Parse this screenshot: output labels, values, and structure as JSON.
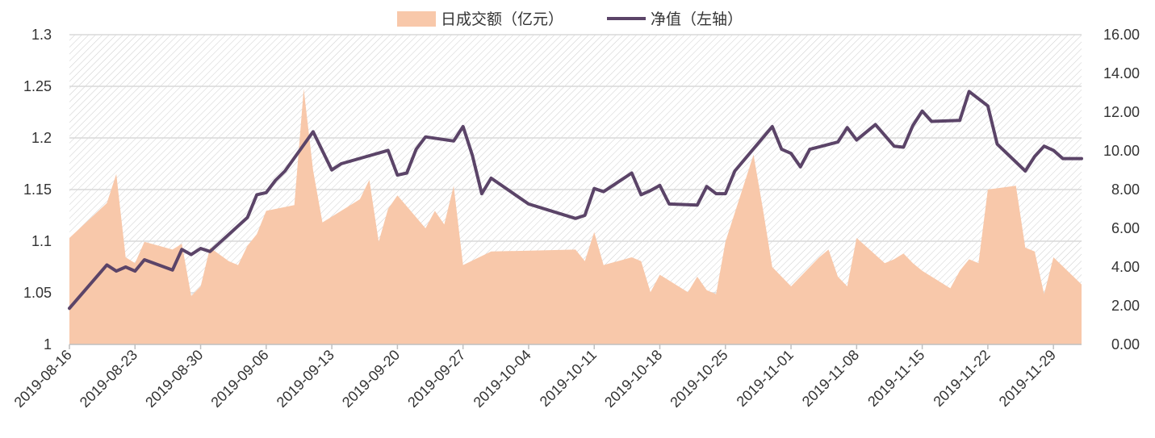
{
  "chart_data": {
    "type": "area+line",
    "title": "",
    "xlabel": "",
    "ylabel": "",
    "legend": {
      "placement": "top-center",
      "entries": [
        {
          "name": "日成交额（亿元）",
          "kind": "area"
        },
        {
          "name": "净值（左轴）",
          "kind": "line"
        }
      ]
    },
    "colors": {
      "area": "#f8c8aa",
      "line": "#5b4468",
      "grid": "#d9d9d9",
      "hatch": "#c8c8c8"
    },
    "x_ticks": [
      "2019-08-16",
      "2019-08-23",
      "2019-08-30",
      "2019-09-06",
      "2019-09-13",
      "2019-09-20",
      "2019-09-27",
      "2019-10-04",
      "2019-10-11",
      "2019-10-18",
      "2019-10-25",
      "2019-11-01",
      "2019-11-08",
      "2019-11-15",
      "2019-11-22",
      "2019-11-29"
    ],
    "x_range": [
      "2019-08-16",
      "2019-12-02"
    ],
    "y_left": {
      "min": 1.0,
      "max": 1.3,
      "ticks": [
        "1",
        "1.05",
        "1.1",
        "1.15",
        "1.2",
        "1.25",
        "1.3"
      ],
      "tick_values": [
        1,
        1.05,
        1.1,
        1.15,
        1.2,
        1.25,
        1.3
      ]
    },
    "y_right": {
      "min": 0,
      "max": 16,
      "ticks": [
        "0.00",
        "2.00",
        "4.00",
        "6.00",
        "8.00",
        "10.00",
        "12.00",
        "14.00",
        "16.00"
      ],
      "tick_values": [
        0,
        2,
        4,
        6,
        8,
        10,
        12,
        14,
        16
      ]
    },
    "grid": true,
    "series": [
      {
        "name": "日成交额（亿元）",
        "type": "area",
        "axis": "right",
        "points": [
          [
            "2019-08-16",
            5.5
          ],
          [
            "2019-08-20",
            7.3
          ],
          [
            "2019-08-21",
            8.8
          ],
          [
            "2019-08-22",
            4.5
          ],
          [
            "2019-08-23",
            4.2
          ],
          [
            "2019-08-24",
            5.3
          ],
          [
            "2019-08-27",
            4.9
          ],
          [
            "2019-08-28",
            5.2
          ],
          [
            "2019-08-29",
            2.5
          ],
          [
            "2019-08-30",
            3.0
          ],
          [
            "2019-08-31",
            5.0
          ],
          [
            "2019-09-02",
            4.3
          ],
          [
            "2019-09-03",
            4.1
          ],
          [
            "2019-09-04",
            5.1
          ],
          [
            "2019-09-05",
            5.7
          ],
          [
            "2019-09-06",
            6.9
          ],
          [
            "2019-09-09",
            7.2
          ],
          [
            "2019-09-10",
            13.2
          ],
          [
            "2019-09-11",
            9.0
          ],
          [
            "2019-09-12",
            6.3
          ],
          [
            "2019-09-16",
            7.5
          ],
          [
            "2019-09-17",
            8.5
          ],
          [
            "2019-09-18",
            5.3
          ],
          [
            "2019-09-19",
            7.0
          ],
          [
            "2019-09-20",
            7.7
          ],
          [
            "2019-09-23",
            6.0
          ],
          [
            "2019-09-24",
            6.9
          ],
          [
            "2019-09-25",
            6.2
          ],
          [
            "2019-09-26",
            8.2
          ],
          [
            "2019-09-27",
            4.1
          ],
          [
            "2019-09-30",
            4.8
          ],
          [
            "2019-10-09",
            4.9
          ],
          [
            "2019-10-10",
            4.3
          ],
          [
            "2019-10-11",
            5.8
          ],
          [
            "2019-10-12",
            4.1
          ],
          [
            "2019-10-15",
            4.5
          ],
          [
            "2019-10-16",
            4.3
          ],
          [
            "2019-10-17",
            2.7
          ],
          [
            "2019-10-18",
            3.6
          ],
          [
            "2019-10-21",
            2.7
          ],
          [
            "2019-10-22",
            3.5
          ],
          [
            "2019-10-23",
            2.8
          ],
          [
            "2019-10-24",
            2.6
          ],
          [
            "2019-10-25",
            5.3
          ],
          [
            "2019-10-28",
            9.8
          ],
          [
            "2019-10-29",
            7.0
          ],
          [
            "2019-10-30",
            4.0
          ],
          [
            "2019-10-31",
            3.5
          ],
          [
            "2019-11-01",
            3.0
          ],
          [
            "2019-11-04",
            4.5
          ],
          [
            "2019-11-05",
            4.9
          ],
          [
            "2019-11-06",
            3.5
          ],
          [
            "2019-11-07",
            3.0
          ],
          [
            "2019-11-08",
            5.5
          ],
          [
            "2019-11-11",
            4.2
          ],
          [
            "2019-11-12",
            4.4
          ],
          [
            "2019-11-13",
            4.7
          ],
          [
            "2019-11-14",
            4.2
          ],
          [
            "2019-11-15",
            3.8
          ],
          [
            "2019-11-18",
            2.9
          ],
          [
            "2019-11-19",
            3.8
          ],
          [
            "2019-11-20",
            4.4
          ],
          [
            "2019-11-21",
            4.2
          ],
          [
            "2019-11-22",
            8.0
          ],
          [
            "2019-11-25",
            8.2
          ],
          [
            "2019-11-26",
            5.0
          ],
          [
            "2019-11-27",
            4.8
          ],
          [
            "2019-11-28",
            2.6
          ],
          [
            "2019-11-29",
            4.5
          ],
          [
            "2019-12-02",
            3.1
          ]
        ]
      },
      {
        "name": "净值（左轴）",
        "type": "line",
        "axis": "left",
        "points": [
          [
            "2019-08-16",
            1.035
          ],
          [
            "2019-08-20",
            1.077
          ],
          [
            "2019-08-21",
            1.071
          ],
          [
            "2019-08-22",
            1.075
          ],
          [
            "2019-08-23",
            1.071
          ],
          [
            "2019-08-24",
            1.082
          ],
          [
            "2019-08-27",
            1.072
          ],
          [
            "2019-08-28",
            1.092
          ],
          [
            "2019-08-29",
            1.087
          ],
          [
            "2019-08-30",
            1.093
          ],
          [
            "2019-08-31",
            1.09
          ],
          [
            "2019-09-04",
            1.123
          ],
          [
            "2019-09-05",
            1.145
          ],
          [
            "2019-09-06",
            1.147
          ],
          [
            "2019-09-07",
            1.159
          ],
          [
            "2019-09-08",
            1.168
          ],
          [
            "2019-09-11",
            1.206
          ],
          [
            "2019-09-13",
            1.169
          ],
          [
            "2019-09-14",
            1.175
          ],
          [
            "2019-09-19",
            1.188
          ],
          [
            "2019-09-20",
            1.164
          ],
          [
            "2019-09-21",
            1.166
          ],
          [
            "2019-09-22",
            1.189
          ],
          [
            "2019-09-23",
            1.201
          ],
          [
            "2019-09-26",
            1.197
          ],
          [
            "2019-09-27",
            1.211
          ],
          [
            "2019-09-28",
            1.183
          ],
          [
            "2019-09-29",
            1.146
          ],
          [
            "2019-09-30",
            1.161
          ],
          [
            "2019-10-04",
            1.136
          ],
          [
            "2019-10-09",
            1.122
          ],
          [
            "2019-10-10",
            1.125
          ],
          [
            "2019-10-11",
            1.151
          ],
          [
            "2019-10-12",
            1.148
          ],
          [
            "2019-10-15",
            1.166
          ],
          [
            "2019-10-16",
            1.145
          ],
          [
            "2019-10-17",
            1.149
          ],
          [
            "2019-10-18",
            1.154
          ],
          [
            "2019-10-19",
            1.136
          ],
          [
            "2019-10-22",
            1.135
          ],
          [
            "2019-10-23",
            1.153
          ],
          [
            "2019-10-24",
            1.146
          ],
          [
            "2019-10-25",
            1.146
          ],
          [
            "2019-10-26",
            1.168
          ],
          [
            "2019-10-30",
            1.211
          ],
          [
            "2019-10-31",
            1.189
          ],
          [
            "2019-11-01",
            1.185
          ],
          [
            "2019-11-02",
            1.172
          ],
          [
            "2019-11-03",
            1.189
          ],
          [
            "2019-11-06",
            1.196
          ],
          [
            "2019-11-07",
            1.21
          ],
          [
            "2019-11-08",
            1.198
          ],
          [
            "2019-11-10",
            1.213
          ],
          [
            "2019-11-12",
            1.192
          ],
          [
            "2019-11-13",
            1.191
          ],
          [
            "2019-11-14",
            1.212
          ],
          [
            "2019-11-15",
            1.226
          ],
          [
            "2019-11-16",
            1.216
          ],
          [
            "2019-11-19",
            1.217
          ],
          [
            "2019-11-20",
            1.245
          ],
          [
            "2019-11-22",
            1.231
          ],
          [
            "2019-11-23",
            1.194
          ],
          [
            "2019-11-26",
            1.168
          ],
          [
            "2019-11-27",
            1.182
          ],
          [
            "2019-11-28",
            1.192
          ],
          [
            "2019-11-29",
            1.188
          ],
          [
            "2019-11-30",
            1.18
          ],
          [
            "2019-12-02",
            1.18
          ]
        ]
      }
    ]
  }
}
